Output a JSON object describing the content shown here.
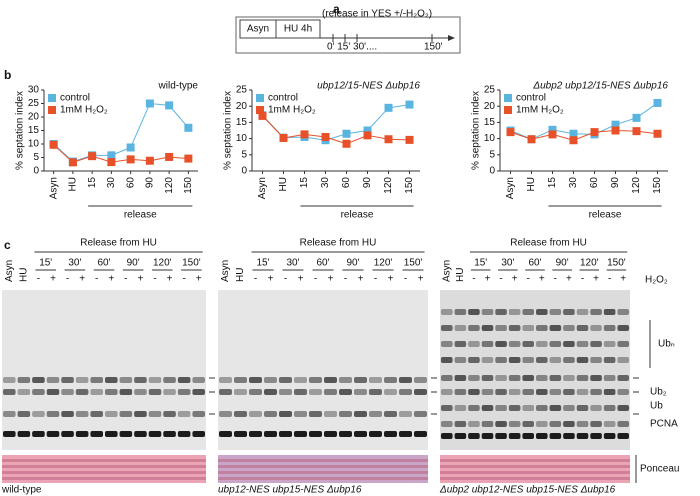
{
  "panel_labels": [
    "a",
    "b",
    "c"
  ],
  "panel_a": {
    "boxes": [
      "Asyn",
      "HU 4h"
    ],
    "note": "(release in YES +/-H₂O₂)",
    "ticks": "0' 15' 30'....",
    "end": "150'"
  },
  "chart_data": [
    {
      "type": "line",
      "title": "wild-type",
      "ylabel": "% septation index",
      "xlabel": "release",
      "categories": [
        "Asyn",
        "HU",
        "15",
        "30",
        "60",
        "90",
        "120",
        "150"
      ],
      "ylim": [
        0,
        30
      ],
      "yticks": [
        0,
        5,
        10,
        15,
        20,
        25,
        30
      ],
      "legend": "upper left",
      "series": [
        {
          "name": "control",
          "color": "#5ab4e0",
          "values": [
            10,
            3.5,
            5.8,
            5.8,
            8.7,
            25,
            24.3,
            16
          ]
        },
        {
          "name": "1mM H₂O₂",
          "color": "#e8502a",
          "values": [
            9.7,
            3.2,
            5.5,
            3.3,
            4.3,
            3.8,
            5.2,
            4.6
          ]
        }
      ]
    },
    {
      "type": "line",
      "title": "ubp12/15-NES Δubp16",
      "ylabel": "% septation index",
      "xlabel": "release",
      "categories": [
        "Asyn",
        "HU",
        "15",
        "30",
        "60",
        "90",
        "120",
        "150"
      ],
      "ylim": [
        0,
        25
      ],
      "yticks": [
        0,
        5,
        10,
        15,
        20,
        25
      ],
      "legend": "upper left",
      "series": [
        {
          "name": "control",
          "color": "#5ab4e0",
          "values": [
            17.2,
            10.3,
            10.5,
            9.5,
            11.5,
            12.5,
            19.5,
            20.5
          ]
        },
        {
          "name": "1mM H₂O₂",
          "color": "#e8502a",
          "values": [
            17,
            10.2,
            11.3,
            10.5,
            8.4,
            11,
            9.8,
            9.6
          ]
        }
      ]
    },
    {
      "type": "line",
      "title": "Δubp2 ubp12/15-NES Δubp16",
      "ylabel": "% septation index",
      "xlabel": "release",
      "categories": [
        "Asyn",
        "HU",
        "15",
        "30",
        "60",
        "90",
        "120",
        "150"
      ],
      "ylim": [
        0,
        25
      ],
      "yticks": [
        0,
        5,
        10,
        15,
        20,
        25
      ],
      "legend": "upper left",
      "series": [
        {
          "name": "control",
          "color": "#5ab4e0",
          "values": [
            12.5,
            9.8,
            12.7,
            11.5,
            11.3,
            14.3,
            16.4,
            21
          ]
        },
        {
          "name": "1mM H₂O₂",
          "color": "#e8502a",
          "values": [
            12,
            9.8,
            11.3,
            9.5,
            12,
            12.5,
            12.3,
            11.5
          ]
        }
      ]
    }
  ],
  "panel_c": {
    "release_label": "Release from HU",
    "lanes": [
      "Asyn",
      "HU"
    ],
    "timepoints": [
      "15'",
      "30'",
      "60'",
      "90'",
      "120'",
      "150'"
    ],
    "signs": [
      "-",
      "+"
    ],
    "treatment": "H₂O₂",
    "bands": [
      "Ubₙ",
      "Ub₂",
      "Ub",
      "PCNA"
    ],
    "stain": "Ponceau",
    "strains": [
      "wild-type",
      "ubp12-NES ubp15-NES Δubp16",
      "Δubp2 ubp12-NES ubp15-NES Δubp16"
    ]
  }
}
